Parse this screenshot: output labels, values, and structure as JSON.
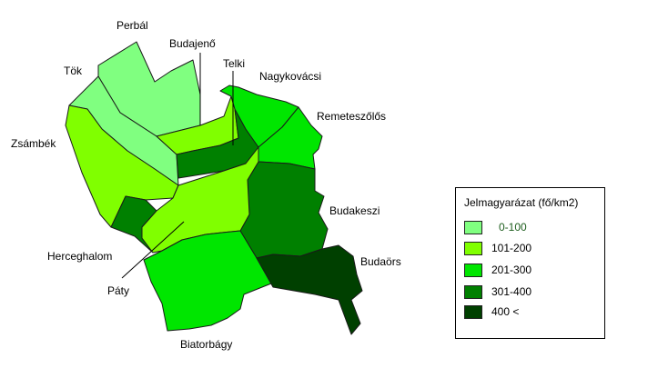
{
  "legend": {
    "title": "Jelmagyarázat (fő/km2)",
    "items": [
      {
        "label": "0-100",
        "color": "#80ff80"
      },
      {
        "label": "101-200",
        "color": "#80ff00"
      },
      {
        "label": "201-300",
        "color": "#00e600"
      },
      {
        "label": "301-400",
        "color": "#008000"
      },
      {
        "label": "400 <",
        "color": "#004000"
      }
    ]
  },
  "places": {
    "perbal": "Perbál",
    "budajeno": "Budajenő",
    "telki": "Telki",
    "tok": "Tök",
    "nagykovacsi": "Nagykovácsi",
    "remeteszolos": "Remeteszőlős",
    "zsambek": "Zsámbék",
    "budakeszi": "Budakeszi",
    "herceghalom": "Herceghalom",
    "budaors": "Budaörs",
    "paty": "Páty",
    "biatorbagy": "Biatorbágy"
  }
}
